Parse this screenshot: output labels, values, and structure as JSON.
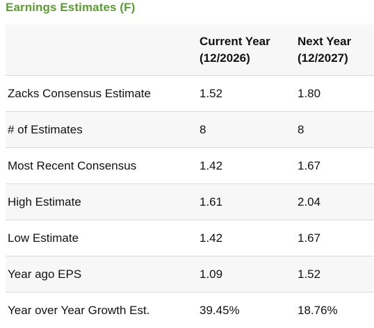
{
  "panel": {
    "title": "Earnings Estimates (F)"
  },
  "table": {
    "columns": [
      {
        "line1": "",
        "line2": ""
      },
      {
        "line1": "Current Year",
        "line2": "(12/2026)"
      },
      {
        "line1": "Next Year",
        "line2": "(12/2027)"
      }
    ],
    "rows": [
      {
        "label": "Zacks Consensus Estimate",
        "current": "1.52",
        "next": "1.80"
      },
      {
        "label": "# of Estimates",
        "current": "8",
        "next": "8"
      },
      {
        "label": "Most Recent Consensus",
        "current": "1.42",
        "next": "1.67"
      },
      {
        "label": "High Estimate",
        "current": "1.61",
        "next": "2.04"
      },
      {
        "label": "Low Estimate",
        "current": "1.42",
        "next": "1.67"
      },
      {
        "label": "Year ago EPS",
        "current": "1.09",
        "next": "1.52"
      },
      {
        "label": "Year over Year Growth Est.",
        "current": "39.45%",
        "next": "18.76%"
      }
    ]
  },
  "colors": {
    "title": "#5a9e2f",
    "stripe": "#f7f7f7",
    "border": "#d8d8d8"
  }
}
